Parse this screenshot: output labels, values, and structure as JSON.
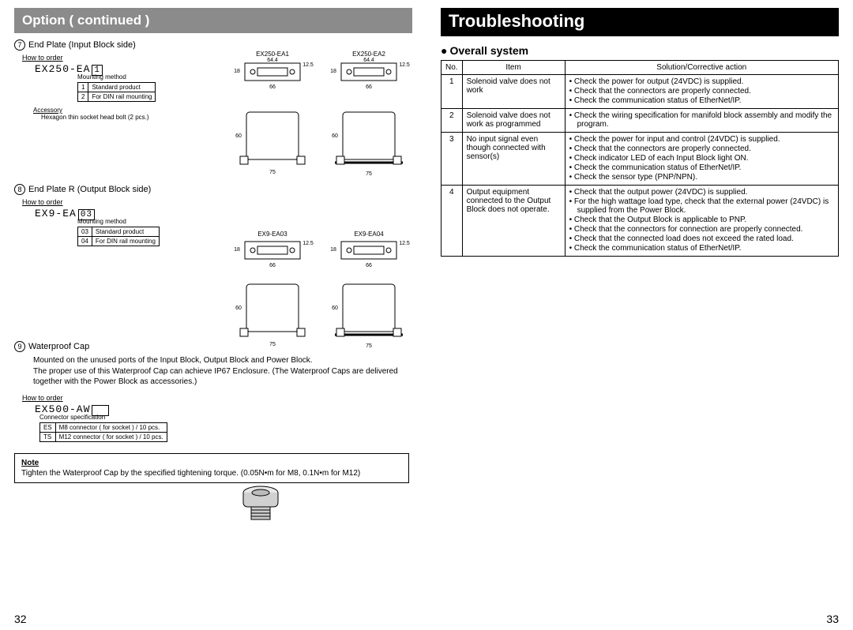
{
  "left": {
    "section_title": "Option ( continued )",
    "page_number": "32",
    "item7": {
      "num": "7",
      "title": "End Plate (Input Block side)",
      "how_to_order": "How to order",
      "part_prefix": "EX250-EA",
      "part_suffix": "1",
      "mounting_label": "Mounting method",
      "options": [
        [
          "1",
          "Standard product"
        ],
        [
          "2",
          "For DIN rail mounting"
        ]
      ],
      "accessory_label": "Accessory",
      "accessory_text": "Hexagon thin socket head bolt (2 pcs.)",
      "dwg_labels": [
        "EX250-EA1",
        "EX250-EA2"
      ],
      "dims": {
        "w_top": "64.4",
        "h_side": "18",
        "h_side2": "12.5",
        "w_bot": "66",
        "h_front": "60",
        "w_front": "75"
      }
    },
    "item8": {
      "num": "8",
      "title": "End Plate R (Output Block side)",
      "how_to_order": "How to order",
      "part_prefix": "EX9-EA",
      "part_suffix": "03",
      "mounting_label": "Mounting method",
      "options": [
        [
          "03",
          "Standard product"
        ],
        [
          "04",
          "For DIN rail mounting"
        ]
      ],
      "dwg_labels": [
        "EX9-EA03",
        "EX9-EA04"
      ],
      "dims": {
        "h_side": "18",
        "h_side2": "12.5",
        "w_bot": "66",
        "h_front": "60",
        "w_front": "75"
      }
    },
    "item9": {
      "num": "9",
      "title": "Waterproof Cap",
      "desc": "Mounted on the unused ports of the Input Block, Output Block and Power Block.\nThe proper use of this Waterproof Cap can achieve IP67 Enclosure. (The Waterproof Caps are delivered together with the Power Block as accessories.)",
      "how_to_order": "How to order",
      "part_prefix": "EX500-AW",
      "conn_label": "Connector specification",
      "options": [
        [
          "ES",
          "M8 connector ( for socket ) / 10 pcs."
        ],
        [
          "TS",
          "M12 connector ( for socket ) / 10 pcs."
        ]
      ]
    },
    "note": {
      "heading": "Note",
      "text": "Tighten the Waterproof Cap by the specified tightening torque. (0.05N•m for M8, 0.1N•m for M12)"
    }
  },
  "right": {
    "section_title": "Troubleshooting",
    "subsection": "Overall system",
    "page_number": "33",
    "table": {
      "headers": [
        "No.",
        "Item",
        "Solution/Corrective action"
      ],
      "rows": [
        {
          "no": "1",
          "item": "Solenoid valve does not work",
          "actions": [
            "Check the power for output (24VDC) is supplied.",
            "Check that the connectors are properly connected.",
            "Check the communication status of EtherNet/IP."
          ]
        },
        {
          "no": "2",
          "item": "Solenoid valve does not work as programmed",
          "actions": [
            "Check the wiring specification for manifold block assembly and modify the program."
          ]
        },
        {
          "no": "3",
          "item": "No input signal even though connected with sensor(s)",
          "actions": [
            "Check the power for input and control (24VDC) is supplied.",
            "Check that the connectors are properly connected.",
            "Check indicator LED of each Input Block light ON.",
            "Check the communication status of EtherNet/IP.",
            "Check the sensor type (PNP/NPN)."
          ]
        },
        {
          "no": "4",
          "item": "Output equipment connected to the Output Block does not operate.",
          "actions": [
            "Check that the output power (24VDC) is supplied.",
            "For the high wattage load type, check that the external power (24VDC) is supplied from the Power Block.",
            "Check that the Output Block is applicable to PNP.",
            "Check that the connectors for connection are properly connected.",
            "Check that the connected load does not exceed the rated  load.",
            "Check the communication status of EtherNet/IP."
          ]
        }
      ]
    }
  }
}
